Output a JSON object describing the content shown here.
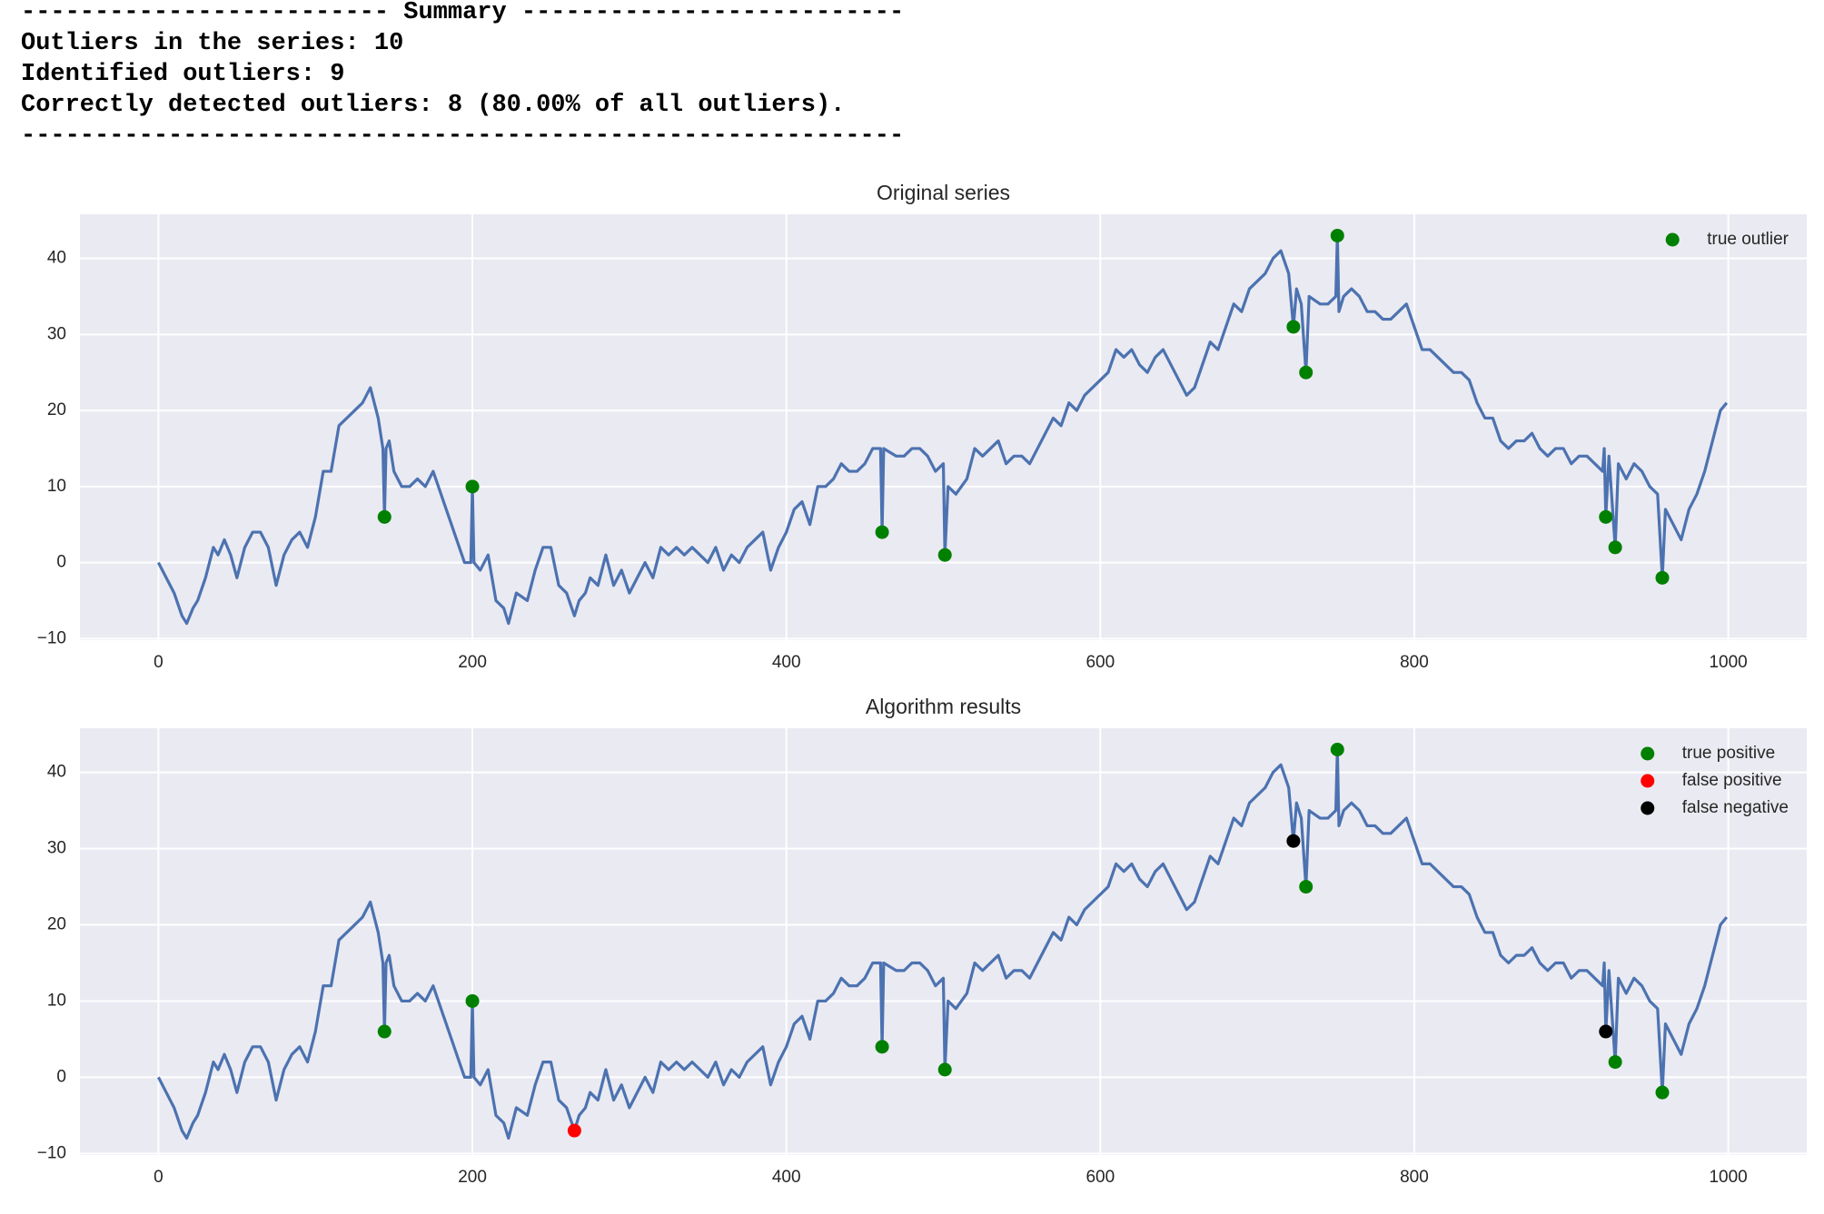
{
  "summary": {
    "lines": [
      "------------------------- Summary --------------------------",
      "Outliers in the series: 10",
      "Identified outliers: 9",
      "Correctly detected outliers: 8 (80.00% of all outliers).",
      "------------------------------------------------------------"
    ]
  },
  "chart_data": [
    {
      "type": "line",
      "title": "Original series",
      "line": {
        "color": "#4c72b0",
        "x": [
          0,
          5,
          10,
          15,
          18,
          22,
          25,
          30,
          35,
          38,
          42,
          46,
          50,
          55,
          60,
          65,
          70,
          75,
          80,
          85,
          90,
          95,
          100,
          105,
          110,
          115,
          120,
          125,
          130,
          135,
          140,
          143,
          144,
          145,
          147,
          150,
          155,
          160,
          165,
          170,
          175,
          180,
          185,
          190,
          195,
          199,
          200,
          201,
          205,
          210,
          215,
          220,
          223,
          228,
          235,
          240,
          245,
          250,
          255,
          260,
          265,
          268,
          272,
          275,
          280,
          285,
          290,
          295,
          300,
          305,
          310,
          315,
          320,
          325,
          330,
          335,
          340,
          345,
          350,
          355,
          360,
          365,
          370,
          375,
          380,
          385,
          390,
          395,
          400,
          405,
          410,
          415,
          420,
          425,
          430,
          435,
          440,
          445,
          450,
          455,
          460,
          461,
          462,
          470,
          475,
          480,
          485,
          490,
          495,
          500,
          501,
          503,
          508,
          515,
          520,
          525,
          530,
          535,
          540,
          545,
          550,
          555,
          560,
          565,
          570,
          575,
          580,
          585,
          590,
          595,
          600,
          605,
          610,
          615,
          620,
          625,
          630,
          635,
          640,
          645,
          650,
          655,
          660,
          665,
          670,
          675,
          680,
          685,
          690,
          695,
          700,
          705,
          710,
          715,
          720,
          723,
          725,
          728,
          731,
          733,
          740,
          745,
          750,
          751,
          752,
          755,
          760,
          765,
          770,
          775,
          780,
          785,
          790,
          795,
          800,
          805,
          810,
          815,
          820,
          825,
          830,
          835,
          840,
          845,
          850,
          855,
          860,
          865,
          870,
          875,
          880,
          885,
          890,
          895,
          900,
          905,
          910,
          915,
          920,
          921,
          922,
          924,
          928,
          930,
          935,
          940,
          945,
          950,
          955,
          958,
          960,
          965,
          970,
          975,
          980,
          985,
          990,
          995,
          999
        ],
        "values": [
          0,
          -2,
          -4,
          -7,
          -8,
          -6,
          -5,
          -2,
          2,
          1,
          3,
          1,
          -2,
          2,
          4,
          4,
          2,
          -3,
          1,
          3,
          4,
          2,
          6,
          12,
          12,
          18,
          19,
          20,
          21,
          23,
          19,
          15,
          6,
          15,
          16,
          12,
          10,
          10,
          11,
          10,
          12,
          9,
          6,
          3,
          0,
          0,
          10,
          0,
          -1,
          1,
          -5,
          -6,
          -8,
          -4,
          -5,
          -1,
          2,
          2,
          -3,
          -4,
          -7,
          -5,
          -4,
          -2,
          -3,
          1,
          -3,
          -1,
          -4,
          -2,
          0,
          -2,
          2,
          1,
          2,
          1,
          2,
          1,
          0,
          2,
          -1,
          1,
          0,
          2,
          3,
          4,
          -1,
          2,
          4,
          7,
          8,
          5,
          10,
          10,
          11,
          13,
          12,
          12,
          13,
          15,
          15,
          4,
          15,
          14,
          14,
          15,
          15,
          14,
          12,
          13,
          1,
          10,
          9,
          11,
          15,
          14,
          15,
          16,
          13,
          14,
          14,
          13,
          15,
          17,
          19,
          18,
          21,
          20,
          22,
          23,
          24,
          25,
          28,
          27,
          28,
          26,
          25,
          27,
          28,
          26,
          24,
          22,
          23,
          26,
          29,
          28,
          31,
          34,
          33,
          36,
          37,
          38,
          40,
          41,
          38,
          31,
          36,
          34,
          25,
          35,
          34,
          34,
          35,
          43,
          33,
          35,
          36,
          35,
          33,
          33,
          32,
          32,
          33,
          34,
          31,
          28,
          28,
          27,
          26,
          25,
          25,
          24,
          21,
          19,
          19,
          16,
          15,
          16,
          16,
          17,
          15,
          14,
          15,
          15,
          13,
          14,
          14,
          13,
          12,
          15,
          6,
          14,
          2,
          13,
          11,
          13,
          12,
          10,
          9,
          -2,
          7,
          5,
          3,
          7,
          9,
          12,
          16,
          20,
          21
        ]
      },
      "points": [
        {
          "name": "true outlier",
          "color": "#008000",
          "x": [
            144,
            200,
            461,
            501,
            723,
            731,
            751,
            922,
            928,
            958
          ],
          "values": [
            6,
            10,
            4,
            1,
            31,
            25,
            43,
            6,
            2,
            -2
          ]
        }
      ],
      "xlim": [
        -50,
        1050
      ],
      "ylim": [
        -10.2,
        45.8
      ],
      "xticks": [
        0,
        200,
        400,
        600,
        800,
        1000
      ],
      "yticks": [
        {
          "value": -10,
          "label": "−10"
        },
        0,
        10,
        20,
        30,
        40
      ],
      "grid": true,
      "legend": "upper right"
    },
    {
      "type": "line",
      "title": "Algorithm results",
      "line": {
        "color": "#4c72b0",
        "x": [
          0,
          5,
          10,
          15,
          18,
          22,
          25,
          30,
          35,
          38,
          42,
          46,
          50,
          55,
          60,
          65,
          70,
          75,
          80,
          85,
          90,
          95,
          100,
          105,
          110,
          115,
          120,
          125,
          130,
          135,
          140,
          143,
          144,
          145,
          147,
          150,
          155,
          160,
          165,
          170,
          175,
          180,
          185,
          190,
          195,
          199,
          200,
          201,
          205,
          210,
          215,
          220,
          223,
          228,
          235,
          240,
          245,
          250,
          255,
          260,
          265,
          268,
          272,
          275,
          280,
          285,
          290,
          295,
          300,
          305,
          310,
          315,
          320,
          325,
          330,
          335,
          340,
          345,
          350,
          355,
          360,
          365,
          370,
          375,
          380,
          385,
          390,
          395,
          400,
          405,
          410,
          415,
          420,
          425,
          430,
          435,
          440,
          445,
          450,
          455,
          460,
          461,
          462,
          470,
          475,
          480,
          485,
          490,
          495,
          500,
          501,
          503,
          508,
          515,
          520,
          525,
          530,
          535,
          540,
          545,
          550,
          555,
          560,
          565,
          570,
          575,
          580,
          585,
          590,
          595,
          600,
          605,
          610,
          615,
          620,
          625,
          630,
          635,
          640,
          645,
          650,
          655,
          660,
          665,
          670,
          675,
          680,
          685,
          690,
          695,
          700,
          705,
          710,
          715,
          720,
          723,
          725,
          728,
          731,
          733,
          740,
          745,
          750,
          751,
          752,
          755,
          760,
          765,
          770,
          775,
          780,
          785,
          790,
          795,
          800,
          805,
          810,
          815,
          820,
          825,
          830,
          835,
          840,
          845,
          850,
          855,
          860,
          865,
          870,
          875,
          880,
          885,
          890,
          895,
          900,
          905,
          910,
          915,
          920,
          921,
          922,
          924,
          928,
          930,
          935,
          940,
          945,
          950,
          955,
          958,
          960,
          965,
          970,
          975,
          980,
          985,
          990,
          995,
          999
        ],
        "values": [
          0,
          -2,
          -4,
          -7,
          -8,
          -6,
          -5,
          -2,
          2,
          1,
          3,
          1,
          -2,
          2,
          4,
          4,
          2,
          -3,
          1,
          3,
          4,
          2,
          6,
          12,
          12,
          18,
          19,
          20,
          21,
          23,
          19,
          15,
          6,
          15,
          16,
          12,
          10,
          10,
          11,
          10,
          12,
          9,
          6,
          3,
          0,
          0,
          10,
          0,
          -1,
          1,
          -5,
          -6,
          -8,
          -4,
          -5,
          -1,
          2,
          2,
          -3,
          -4,
          -7,
          -5,
          -4,
          -2,
          -3,
          1,
          -3,
          -1,
          -4,
          -2,
          0,
          -2,
          2,
          1,
          2,
          1,
          2,
          1,
          0,
          2,
          -1,
          1,
          0,
          2,
          3,
          4,
          -1,
          2,
          4,
          7,
          8,
          5,
          10,
          10,
          11,
          13,
          12,
          12,
          13,
          15,
          15,
          4,
          15,
          14,
          14,
          15,
          15,
          14,
          12,
          13,
          1,
          10,
          9,
          11,
          15,
          14,
          15,
          16,
          13,
          14,
          14,
          13,
          15,
          17,
          19,
          18,
          21,
          20,
          22,
          23,
          24,
          25,
          28,
          27,
          28,
          26,
          25,
          27,
          28,
          26,
          24,
          22,
          23,
          26,
          29,
          28,
          31,
          34,
          33,
          36,
          37,
          38,
          40,
          41,
          38,
          31,
          36,
          34,
          25,
          35,
          34,
          34,
          35,
          43,
          33,
          35,
          36,
          35,
          33,
          33,
          32,
          32,
          33,
          34,
          31,
          28,
          28,
          27,
          26,
          25,
          25,
          24,
          21,
          19,
          19,
          16,
          15,
          16,
          16,
          17,
          15,
          14,
          15,
          15,
          13,
          14,
          14,
          13,
          12,
          15,
          6,
          14,
          2,
          13,
          11,
          13,
          12,
          10,
          9,
          -2,
          7,
          5,
          3,
          7,
          9,
          12,
          16,
          20,
          21
        ]
      },
      "points": [
        {
          "name": "true positive",
          "color": "#008000",
          "x": [
            144,
            200,
            461,
            501,
            731,
            751,
            928,
            958
          ],
          "values": [
            6,
            10,
            4,
            1,
            25,
            43,
            2,
            -2
          ]
        },
        {
          "name": "false positive",
          "color": "#ff0000",
          "x": [
            265
          ],
          "values": [
            -7
          ]
        },
        {
          "name": "false negative",
          "color": "#000000",
          "x": [
            723,
            922
          ],
          "values": [
            31,
            6
          ]
        }
      ],
      "xlim": [
        -50,
        1050
      ],
      "ylim": [
        -10.2,
        45.8
      ],
      "xticks": [
        0,
        200,
        400,
        600,
        800,
        1000
      ],
      "yticks": [
        {
          "value": -10,
          "label": "−10"
        },
        0,
        10,
        20,
        30,
        40
      ],
      "grid": true,
      "legend": "upper right"
    }
  ]
}
